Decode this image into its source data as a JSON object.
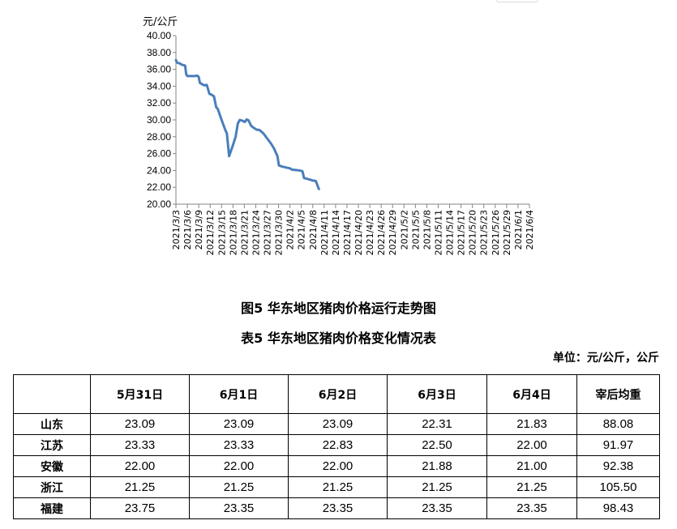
{
  "chart_data": {
    "type": "line",
    "title": "图5 华东地区猪肉价格运行走势图",
    "xlabel": "",
    "ylabel": "元/公斤",
    "ylim": [
      20,
      40
    ],
    "yticks": [
      "40.00",
      "38.00",
      "36.00",
      "34.00",
      "32.00",
      "30.00",
      "28.00",
      "26.00",
      "24.00",
      "22.00",
      "20.00"
    ],
    "grid": false,
    "legend": null,
    "categories": [
      "2021/3/3",
      "2021/3/6",
      "2021/3/9",
      "2021/3/12",
      "2021/3/15",
      "2021/3/18",
      "2021/3/21",
      "2021/3/24",
      "2021/3/27",
      "2021/3/30",
      "2021/4/2",
      "2021/4/5",
      "2021/4/8",
      "2021/4/11",
      "2021/4/14",
      "2021/4/17",
      "2021/4/20",
      "2021/4/23",
      "2021/4/26",
      "2021/4/29",
      "2021/5/2",
      "2021/5/5",
      "2021/5/8",
      "2021/5/11",
      "2021/5/14",
      "2021/5/17",
      "2021/5/20",
      "2021/5/23",
      "2021/5/26",
      "2021/5/29",
      "2021/6/1",
      "2021/6/4"
    ],
    "series": [
      {
        "name": "华东地区猪肉价格",
        "color": "#4a7ebb",
        "points": [
          [
            0,
            37.1
          ],
          [
            0.3,
            36.8
          ],
          [
            1,
            36.7
          ],
          [
            1.6,
            36.55
          ],
          [
            2.4,
            36.45
          ],
          [
            2.7,
            35.4
          ],
          [
            3,
            35.2
          ],
          [
            4,
            35.2
          ],
          [
            5,
            35.2
          ],
          [
            5.6,
            35.25
          ],
          [
            6,
            35.1
          ],
          [
            6.3,
            34.4
          ],
          [
            7,
            34.2
          ],
          [
            7.5,
            34.1
          ],
          [
            8.1,
            34.15
          ],
          [
            8.8,
            33.1
          ],
          [
            9.3,
            33.0
          ],
          [
            10,
            32.8
          ],
          [
            10.6,
            31.5
          ],
          [
            11,
            31.3
          ],
          [
            12,
            30.0
          ],
          [
            13,
            28.8
          ],
          [
            13.4,
            28.4
          ],
          [
            14,
            25.7
          ],
          [
            15,
            27.0
          ],
          [
            15.7,
            28.0
          ],
          [
            16.3,
            29.6
          ],
          [
            16.8,
            30.0
          ],
          [
            17.5,
            29.9
          ],
          [
            18.1,
            29.75
          ],
          [
            18.6,
            30.05
          ],
          [
            19.1,
            29.95
          ],
          [
            19.8,
            29.3
          ],
          [
            20.5,
            29.05
          ],
          [
            21.2,
            28.85
          ],
          [
            22,
            28.8
          ],
          [
            23,
            28.4
          ],
          [
            24,
            27.8
          ],
          [
            25,
            27.2
          ],
          [
            25.8,
            26.6
          ],
          [
            26.7,
            25.7
          ],
          [
            27.1,
            24.6
          ],
          [
            28,
            24.45
          ],
          [
            29,
            24.35
          ],
          [
            30,
            24.25
          ],
          [
            30.5,
            24.1
          ],
          [
            31.5,
            24.05
          ],
          [
            32.5,
            24.0
          ],
          [
            33.3,
            23.9
          ],
          [
            33.7,
            23.1
          ],
          [
            35,
            22.95
          ],
          [
            36,
            22.8
          ],
          [
            36.8,
            22.75
          ],
          [
            37.6,
            21.8
          ]
        ],
        "x_scale_note": "point x values are in units of 1 day (0 = 2021/3/3), approximated"
      }
    ]
  },
  "chart": {
    "unit_label": "元/公斤",
    "axis_color": "#868686",
    "line_color": "#4a7ebb"
  },
  "figure_title": "图5 华东地区猪肉价格运行走势图",
  "table_title": "表5 华东地区猪肉价格变化情况表",
  "unit_note": "单位：元/公斤，公斤",
  "table": {
    "headers": [
      "",
      "5月31日",
      "6月1日",
      "6月2日",
      "6月3日",
      "6月4日",
      "宰后均重"
    ],
    "rows": [
      {
        "region": "山东",
        "values": [
          "23.09",
          "23.09",
          "23.09",
          "22.31",
          "21.83",
          "88.08"
        ]
      },
      {
        "region": "江苏",
        "values": [
          "23.33",
          "23.33",
          "22.83",
          "22.50",
          "22.00",
          "91.97"
        ]
      },
      {
        "region": "安徽",
        "values": [
          "22.00",
          "22.00",
          "22.00",
          "21.88",
          "21.00",
          "92.38"
        ]
      },
      {
        "region": "浙江",
        "values": [
          "21.25",
          "21.25",
          "21.25",
          "21.25",
          "21.25",
          "105.50"
        ]
      },
      {
        "region": "福建",
        "values": [
          "23.75",
          "23.35",
          "23.35",
          "23.35",
          "23.35",
          "98.43"
        ]
      }
    ]
  }
}
